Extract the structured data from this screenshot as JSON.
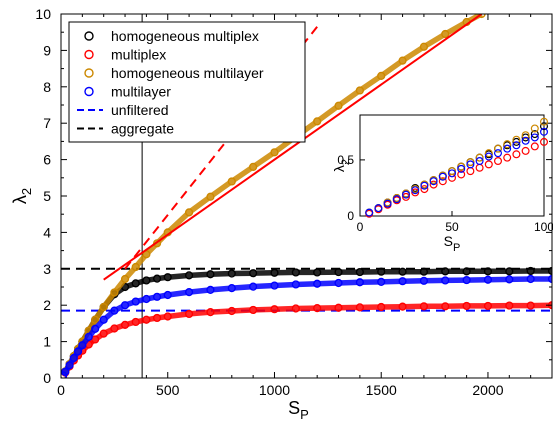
{
  "chart_data": {
    "type": "scatter",
    "main": {
      "xlabel": "S",
      "xlabel_sub": "P",
      "ylabel": "λ",
      "ylabel_sub": "2",
      "xlim": [
        0,
        2300
      ],
      "ylim": [
        0,
        10
      ],
      "xticks": [
        0,
        500,
        1000,
        1500,
        2000
      ],
      "yticks": [
        0,
        1,
        2,
        3,
        4,
        5,
        6,
        7,
        8,
        9,
        10
      ],
      "vertical_line_x": 380,
      "series": [
        {
          "name": "homogeneous multiplex",
          "color": "#000000",
          "marker": "circle",
          "x": [
            10,
            20,
            40,
            60,
            80,
            100,
            130,
            160,
            200,
            250,
            300,
            350,
            400,
            450,
            500,
            600,
            700,
            800,
            900,
            1000,
            1100,
            1200,
            1300,
            1400,
            1500,
            1600,
            1700,
            1800,
            1900,
            2000,
            2100,
            2200,
            2300
          ],
          "y": [
            0.08,
            0.18,
            0.38,
            0.6,
            0.8,
            1.0,
            1.3,
            1.6,
            1.95,
            2.3,
            2.5,
            2.6,
            2.68,
            2.73,
            2.77,
            2.82,
            2.85,
            2.87,
            2.88,
            2.89,
            2.9,
            2.9,
            2.91,
            2.91,
            2.92,
            2.92,
            2.92,
            2.93,
            2.93,
            2.93,
            2.93,
            2.94,
            2.94
          ]
        },
        {
          "name": "multiplex",
          "color": "#ff0000",
          "marker": "circle",
          "x": [
            10,
            20,
            40,
            60,
            80,
            100,
            130,
            160,
            200,
            250,
            300,
            350,
            400,
            450,
            500,
            600,
            700,
            800,
            900,
            1000,
            1100,
            1200,
            1300,
            1400,
            1500,
            1600,
            1700,
            1800,
            1900,
            2000,
            2100,
            2200,
            2300
          ],
          "y": [
            0.07,
            0.15,
            0.32,
            0.48,
            0.62,
            0.75,
            0.92,
            1.06,
            1.22,
            1.36,
            1.46,
            1.54,
            1.6,
            1.65,
            1.69,
            1.76,
            1.81,
            1.84,
            1.87,
            1.89,
            1.91,
            1.92,
            1.93,
            1.94,
            1.95,
            1.96,
            1.97,
            1.97,
            1.98,
            1.98,
            1.99,
            1.99,
            2.0
          ]
        },
        {
          "name": "homogeneous multilayer",
          "color": "#cc8800",
          "marker": "circle",
          "x": [
            10,
            20,
            40,
            60,
            80,
            100,
            130,
            160,
            200,
            250,
            300,
            350,
            400,
            450,
            500,
            600,
            700,
            800,
            900,
            1000,
            1100,
            1200,
            1300,
            1400,
            1500,
            1600,
            1700,
            1800,
            1900,
            1970
          ],
          "y": [
            0.08,
            0.18,
            0.38,
            0.6,
            0.8,
            1.0,
            1.3,
            1.6,
            1.95,
            2.35,
            2.72,
            3.05,
            3.4,
            3.7,
            4.0,
            4.55,
            4.98,
            5.4,
            5.8,
            6.2,
            6.63,
            7.05,
            7.48,
            7.9,
            8.3,
            8.72,
            9.1,
            9.45,
            9.78,
            10.0
          ]
        },
        {
          "name": "multilayer",
          "color": "#0000ff",
          "marker": "circle",
          "x": [
            10,
            20,
            40,
            60,
            80,
            100,
            130,
            160,
            200,
            250,
            300,
            350,
            400,
            450,
            500,
            600,
            700,
            800,
            900,
            1000,
            1100,
            1200,
            1300,
            1400,
            1500,
            1600,
            1700,
            1800,
            1900,
            2000,
            2100,
            2200,
            2300
          ],
          "y": [
            0.07,
            0.17,
            0.35,
            0.55,
            0.73,
            0.9,
            1.13,
            1.35,
            1.6,
            1.85,
            2.0,
            2.1,
            2.17,
            2.23,
            2.28,
            2.36,
            2.42,
            2.47,
            2.51,
            2.54,
            2.57,
            2.59,
            2.61,
            2.63,
            2.64,
            2.66,
            2.67,
            2.68,
            2.69,
            2.7,
            2.71,
            2.72,
            2.72
          ]
        }
      ],
      "lines": [
        {
          "name": "unfiltered",
          "color": "#0000ff",
          "style": "dashed",
          "y": 1.85
        },
        {
          "name": "aggregate",
          "color": "#000000",
          "style": "dashed",
          "y": 3.0
        }
      ],
      "fit_lines": [
        {
          "color": "#ff0000",
          "style": "dashed",
          "x": [
            300,
            1200
          ],
          "y": [
            3.0,
            9.65
          ]
        },
        {
          "color": "#ff0000",
          "style": "solid",
          "x": [
            200,
            1970
          ],
          "y": [
            2.7,
            10.0
          ]
        }
      ]
    },
    "inset": {
      "xlabel": "S",
      "xlabel_sub": "P",
      "ylabel": "λ",
      "ylabel_sub": "2",
      "xlim": [
        0,
        100
      ],
      "ylim": [
        0,
        0.9
      ],
      "xticks": [
        0,
        50,
        100
      ],
      "yticks": [
        0,
        0.5
      ],
      "series": [
        {
          "color": "#000000",
          "x": [
            5,
            10,
            15,
            20,
            25,
            30,
            35,
            40,
            45,
            50,
            55,
            60,
            65,
            70,
            75,
            80,
            85,
            90,
            95,
            100
          ],
          "y": [
            0.03,
            0.07,
            0.12,
            0.16,
            0.2,
            0.25,
            0.28,
            0.32,
            0.36,
            0.4,
            0.44,
            0.48,
            0.52,
            0.55,
            0.6,
            0.63,
            0.66,
            0.7,
            0.73,
            0.8
          ]
        },
        {
          "color": "#ff0000",
          "x": [
            5,
            10,
            15,
            20,
            25,
            30,
            35,
            40,
            45,
            50,
            55,
            60,
            65,
            70,
            75,
            80,
            85,
            90,
            95,
            100
          ],
          "y": [
            0.02,
            0.06,
            0.1,
            0.14,
            0.17,
            0.21,
            0.24,
            0.28,
            0.31,
            0.34,
            0.37,
            0.4,
            0.43,
            0.46,
            0.49,
            0.52,
            0.55,
            0.58,
            0.62,
            0.66
          ]
        },
        {
          "color": "#cc8800",
          "x": [
            5,
            10,
            15,
            20,
            25,
            30,
            35,
            40,
            45,
            50,
            55,
            60,
            65,
            70,
            75,
            80,
            85,
            90,
            95,
            100
          ],
          "y": [
            0.03,
            0.07,
            0.12,
            0.16,
            0.2,
            0.24,
            0.28,
            0.32,
            0.36,
            0.4,
            0.44,
            0.48,
            0.52,
            0.56,
            0.6,
            0.64,
            0.68,
            0.72,
            0.78,
            0.84
          ]
        },
        {
          "color": "#0000ff",
          "x": [
            5,
            10,
            15,
            20,
            25,
            30,
            35,
            40,
            45,
            50,
            55,
            60,
            65,
            70,
            75,
            80,
            85,
            90,
            95,
            100
          ],
          "y": [
            0.03,
            0.07,
            0.11,
            0.15,
            0.19,
            0.23,
            0.27,
            0.31,
            0.35,
            0.38,
            0.42,
            0.46,
            0.49,
            0.53,
            0.56,
            0.6,
            0.63,
            0.67,
            0.7,
            0.75
          ]
        }
      ]
    }
  }
}
